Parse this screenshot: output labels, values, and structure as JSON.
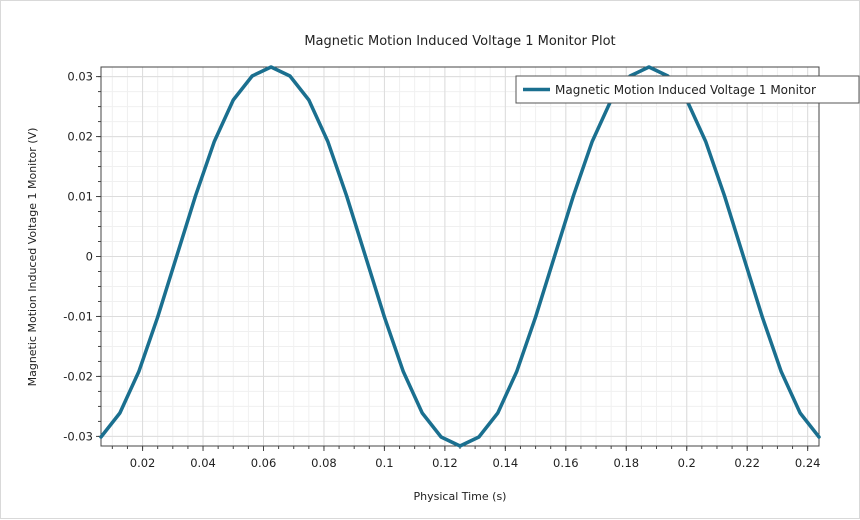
{
  "chart_data": {
    "type": "line",
    "title": "Magnetic Motion Induced Voltage 1 Monitor Plot",
    "xlabel": "Physical Time (s)",
    "ylabel": "Magnetic Motion Induced Voltage 1 Monitor (V)",
    "xlim": [
      0.00625,
      0.24375
    ],
    "ylim": [
      -0.0316,
      0.0316
    ],
    "grid": true,
    "legend_position": "top-right",
    "x_ticks": [
      0.02,
      0.04,
      0.06,
      0.08,
      0.1,
      0.12,
      0.14,
      0.16,
      0.18,
      0.2,
      0.22,
      0.24
    ],
    "x_tick_labels": [
      "0.02",
      "0.04",
      "0.06",
      "0.08",
      "0.1",
      "0.12",
      "0.14",
      "0.16",
      "0.18",
      "0.2",
      "0.22",
      "0.24"
    ],
    "y_ticks": [
      0.03,
      0.02,
      0.01,
      0,
      -0.01,
      -0.02,
      -0.03
    ],
    "y_tick_labels": [
      "0.03",
      "0.02",
      "0.01",
      "0",
      "-0.01",
      "-0.02",
      "-0.03"
    ],
    "series": [
      {
        "name": "Magnetic Motion Induced Voltage 1 Monitor",
        "color": "#1a6f8f",
        "x": [
          0.00625,
          0.0125,
          0.01875,
          0.025,
          0.03125,
          0.0375,
          0.04375,
          0.05,
          0.05625,
          0.0625,
          0.06875,
          0.075,
          0.08125,
          0.0875,
          0.09375,
          0.1,
          0.10625,
          0.1125,
          0.11875,
          0.125,
          0.13125,
          0.1375,
          0.14375,
          0.15,
          0.15625,
          0.1625,
          0.16875,
          0.175,
          0.18125,
          0.1875,
          0.19375,
          0.2,
          0.20625,
          0.2125,
          0.21875,
          0.225,
          0.23125,
          0.2375,
          0.24375
        ],
        "y": [
          -0.0301,
          -0.0261,
          -0.0192,
          -0.0101,
          0.0,
          0.0101,
          0.0192,
          0.0261,
          0.0301,
          0.0316,
          0.0301,
          0.0261,
          0.0192,
          0.0101,
          0.0,
          -0.0101,
          -0.0192,
          -0.0261,
          -0.0301,
          -0.0316,
          -0.0301,
          -0.0261,
          -0.0192,
          -0.0101,
          0.0,
          0.0101,
          0.0192,
          0.0261,
          0.0301,
          0.0316,
          0.0301,
          0.0261,
          0.0192,
          0.0101,
          0.0,
          -0.0101,
          -0.0192,
          -0.0261,
          -0.0301
        ]
      }
    ]
  }
}
